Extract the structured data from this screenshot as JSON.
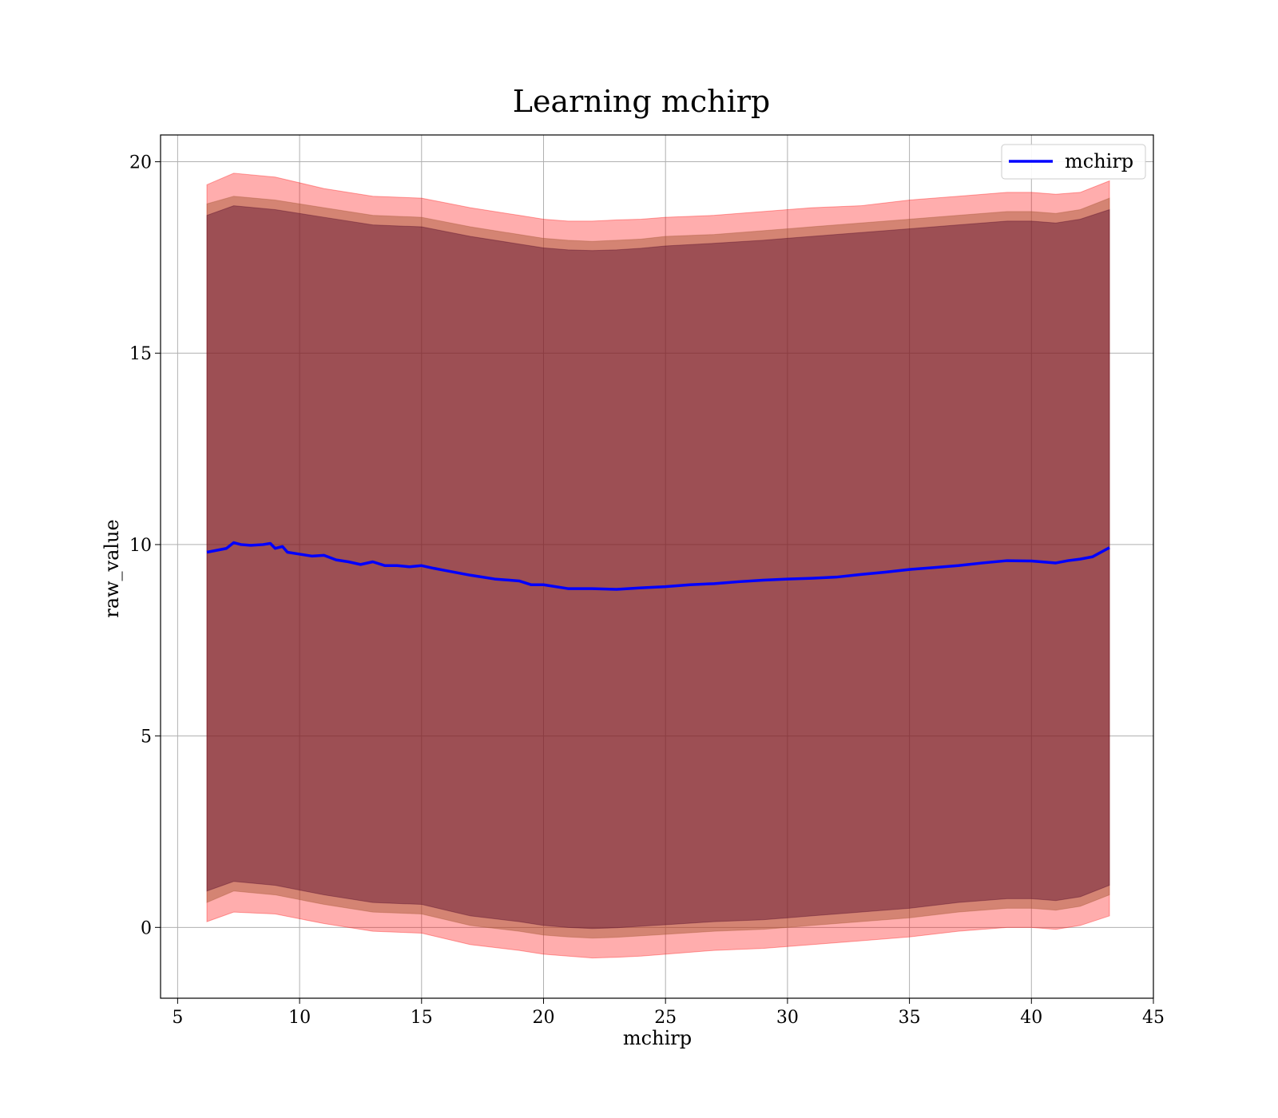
{
  "chart_data": {
    "type": "line",
    "title": "Learning mchirp",
    "xlabel": "mchirp",
    "ylabel": "raw_value",
    "xlim": [
      4.3,
      45
    ],
    "ylim": [
      -1.85,
      20.7
    ],
    "xticks": [
      5,
      10,
      15,
      20,
      25,
      30,
      35,
      40,
      45
    ],
    "yticks": [
      0,
      5,
      10,
      15,
      20
    ],
    "grid": true,
    "legend": {
      "position": "top-right",
      "entries": [
        "mchirp"
      ]
    },
    "colors": {
      "line": "#0000ff",
      "band_outer": "#ff0000",
      "band_middle": "#a0522d",
      "band_inner": "#4b0026",
      "grid": "#b0b0b0"
    },
    "series": [
      {
        "name": "mchirp",
        "x": [
          6.2,
          6.6,
          7.0,
          7.3,
          7.6,
          8.0,
          8.5,
          8.8,
          9.0,
          9.3,
          9.5,
          10,
          10.5,
          11,
          11.5,
          12,
          12.5,
          13,
          13.5,
          14,
          14.5,
          15,
          15.5,
          16,
          17,
          18,
          19,
          19.5,
          20,
          21,
          22,
          23,
          24,
          25,
          26,
          27,
          28,
          29,
          30,
          31,
          32,
          33,
          34,
          35,
          36,
          37,
          38,
          39,
          40,
          41,
          41.5,
          42,
          42.5,
          43.2
        ],
        "y": [
          9.8,
          9.85,
          9.9,
          10.05,
          10.0,
          9.98,
          10.0,
          10.03,
          9.9,
          9.95,
          9.8,
          9.75,
          9.7,
          9.72,
          9.6,
          9.55,
          9.48,
          9.55,
          9.45,
          9.45,
          9.42,
          9.45,
          9.38,
          9.32,
          9.2,
          9.1,
          9.05,
          8.95,
          8.95,
          8.85,
          8.85,
          8.83,
          8.87,
          8.9,
          8.95,
          8.98,
          9.03,
          9.07,
          9.1,
          9.12,
          9.15,
          9.22,
          9.28,
          9.35,
          9.4,
          9.45,
          9.52,
          9.58,
          9.57,
          9.52,
          9.58,
          9.62,
          9.68,
          9.92
        ]
      }
    ],
    "bands": [
      {
        "x": [
          6.2,
          7.3,
          9.0,
          11,
          13,
          15,
          17,
          19,
          20,
          21,
          22,
          23,
          24,
          25,
          27,
          29,
          30,
          31,
          33,
          35,
          37,
          39,
          40,
          41,
          42,
          43.2
        ],
        "upper": [
          19.4,
          19.7,
          19.6,
          19.3,
          19.1,
          19.05,
          18.8,
          18.6,
          18.5,
          18.45,
          18.45,
          18.48,
          18.5,
          18.55,
          18.6,
          18.7,
          18.75,
          18.8,
          18.85,
          19.0,
          19.1,
          19.2,
          19.2,
          19.15,
          19.2,
          19.5
        ],
        "lower": [
          0.15,
          0.4,
          0.35,
          0.1,
          -0.1,
          -0.15,
          -0.45,
          -0.6,
          -0.7,
          -0.75,
          -0.8,
          -0.78,
          -0.75,
          -0.7,
          -0.6,
          -0.55,
          -0.5,
          -0.45,
          -0.35,
          -0.25,
          -0.1,
          0.0,
          0.0,
          -0.05,
          0.05,
          0.3
        ]
      },
      {
        "x": [
          6.2,
          7.3,
          9.0,
          11,
          13,
          15,
          17,
          19,
          20,
          21,
          22,
          23,
          24,
          25,
          27,
          29,
          30,
          31,
          33,
          35,
          37,
          39,
          40,
          41,
          42,
          43.2
        ],
        "upper": [
          18.9,
          19.1,
          19.0,
          18.8,
          18.6,
          18.55,
          18.3,
          18.1,
          18.0,
          17.95,
          17.92,
          17.95,
          17.98,
          18.05,
          18.1,
          18.2,
          18.25,
          18.3,
          18.4,
          18.5,
          18.6,
          18.7,
          18.7,
          18.65,
          18.75,
          19.05
        ],
        "lower": [
          0.65,
          0.95,
          0.85,
          0.6,
          0.4,
          0.35,
          0.05,
          -0.1,
          -0.2,
          -0.25,
          -0.28,
          -0.26,
          -0.22,
          -0.18,
          -0.1,
          -0.05,
          0.0,
          0.05,
          0.15,
          0.25,
          0.4,
          0.5,
          0.5,
          0.45,
          0.55,
          0.85
        ]
      },
      {
        "x": [
          6.2,
          7.3,
          9.0,
          11,
          13,
          15,
          17,
          19,
          20,
          21,
          22,
          23,
          24,
          25,
          27,
          29,
          30,
          31,
          33,
          35,
          37,
          39,
          40,
          41,
          42,
          43.2
        ],
        "upper": [
          18.6,
          18.85,
          18.75,
          18.55,
          18.35,
          18.3,
          18.05,
          17.85,
          17.75,
          17.7,
          17.68,
          17.7,
          17.74,
          17.8,
          17.87,
          17.95,
          18.0,
          18.05,
          18.15,
          18.25,
          18.35,
          18.45,
          18.45,
          18.4,
          18.5,
          18.75
        ],
        "lower": [
          0.95,
          1.2,
          1.1,
          0.85,
          0.65,
          0.6,
          0.3,
          0.15,
          0.05,
          0.0,
          -0.03,
          -0.01,
          0.03,
          0.07,
          0.15,
          0.2,
          0.25,
          0.3,
          0.4,
          0.5,
          0.65,
          0.75,
          0.75,
          0.7,
          0.8,
          1.1
        ]
      }
    ]
  }
}
